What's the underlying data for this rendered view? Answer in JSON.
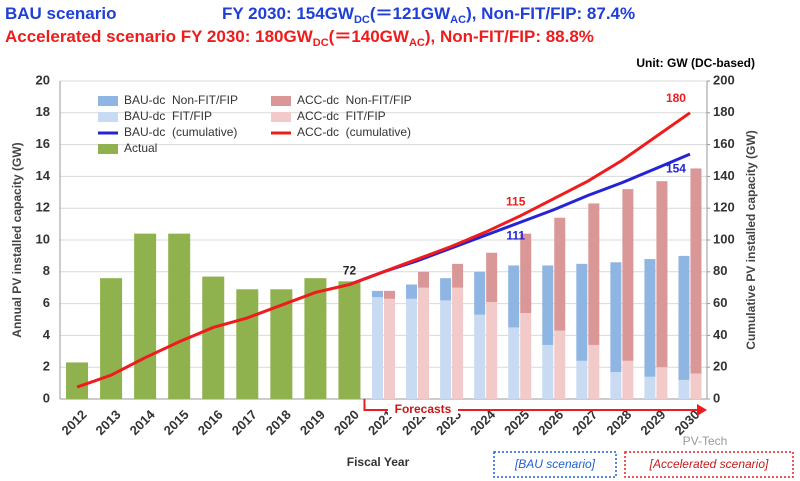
{
  "header": {
    "bau": {
      "scenario": "BAU scenario",
      "pre": "FY 2030: 154GW",
      "sub1": "DC",
      "mid": "(＝121GW",
      "sub2": "AC",
      "post": "), Non-FIT/FIP: 87.4%"
    },
    "acc": {
      "scenario": "Accelerated scenario",
      "pre": "FY 2030: 180GW",
      "sub1": "DC",
      "mid": "(＝140GW",
      "sub2": "AC",
      "post": "), Non-FIT/FIP: 88.8%"
    }
  },
  "chart_data": {
    "type": "bar",
    "unit_note": "Unit: GW (DC-based)",
    "x_label": "Fiscal Year",
    "y_label": "Annual PV installed capacity (GW)",
    "y2_label": "Cumulative PV installed capacity (GW)",
    "categories": [
      "2012",
      "2013",
      "2014",
      "2015",
      "2016",
      "2017",
      "2018",
      "2019",
      "2020",
      "2021",
      "2022",
      "2023",
      "2024",
      "2025",
      "2026",
      "2027",
      "2028",
      "2029",
      "2030"
    ],
    "ylim": [
      0,
      20
    ],
    "yticks": [
      0,
      2,
      4,
      6,
      8,
      10,
      12,
      14,
      16,
      18,
      20
    ],
    "y2lim": [
      0,
      200
    ],
    "y2ticks": [
      0,
      20,
      40,
      60,
      80,
      100,
      120,
      140,
      160,
      180,
      200
    ],
    "grid": true,
    "series": [
      {
        "name": "Actual",
        "type": "bar",
        "color": "#8fb24f",
        "values": [
          2.3,
          7.6,
          10.4,
          10.4,
          7.7,
          6.9,
          6.9,
          7.6,
          7.4,
          null,
          null,
          null,
          null,
          null,
          null,
          null,
          null,
          null,
          null
        ]
      },
      {
        "name": "BAU-dc  FIT/FIP",
        "type": "bar",
        "stack": "bau",
        "color": "#c9dbf2",
        "values": [
          null,
          null,
          null,
          null,
          null,
          null,
          null,
          null,
          null,
          6.4,
          6.3,
          6.2,
          5.3,
          4.5,
          3.4,
          2.4,
          1.7,
          1.4,
          1.2
        ]
      },
      {
        "name": "BAU-dc  Non-FIT/FIP",
        "type": "bar",
        "stack": "bau",
        "color": "#8fb5e3",
        "values": [
          null,
          null,
          null,
          null,
          null,
          null,
          null,
          null,
          null,
          0.4,
          0.9,
          1.4,
          2.7,
          3.9,
          5.0,
          6.1,
          6.9,
          7.4,
          7.8
        ]
      },
      {
        "name": "ACC-dc  FIT/FIP",
        "type": "bar",
        "stack": "acc",
        "color": "#f2caca",
        "values": [
          null,
          null,
          null,
          null,
          null,
          null,
          null,
          null,
          null,
          6.3,
          7.0,
          7.0,
          6.1,
          5.4,
          4.3,
          3.4,
          2.4,
          2.0,
          1.6
        ]
      },
      {
        "name": "ACC-dc  Non-FIT/FIP",
        "type": "bar",
        "stack": "acc",
        "color": "#d99797",
        "values": [
          null,
          null,
          null,
          null,
          null,
          null,
          null,
          null,
          null,
          0.5,
          1.0,
          1.5,
          3.1,
          5.0,
          7.1,
          8.9,
          10.8,
          11.7,
          12.9
        ]
      },
      {
        "name": "BAU-dc  (cumulative)",
        "type": "line",
        "axis": "y2",
        "color": "#2424d6",
        "values": [
          null,
          null,
          null,
          null,
          null,
          null,
          null,
          null,
          72,
          80,
          87,
          95,
          103,
          111,
          119,
          128,
          136,
          145,
          154
        ]
      },
      {
        "name": "ACC-dc  (cumulative)",
        "type": "line",
        "axis": "y2",
        "color": "#ee1c1c",
        "values": [
          7.5,
          15,
          26,
          36,
          45,
          51,
          59,
          67,
          72,
          80,
          88,
          96,
          105,
          115,
          126,
          137,
          150,
          165,
          180
        ]
      }
    ],
    "annotations": {
      "forecasts": "Forecasts",
      "bau_box": "[BAU scenario]",
      "acc_box": "[Accelerated scenario]",
      "watermark": "PV-Tech"
    }
  }
}
